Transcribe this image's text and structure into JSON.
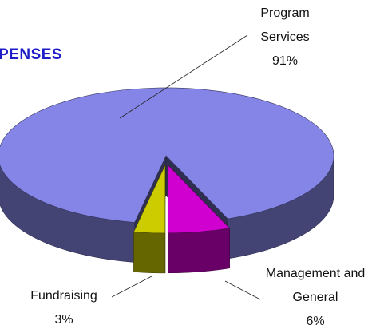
{
  "chart_data": {
    "type": "pie",
    "title": "PENSES",
    "categories": [
      "Program Services",
      "Management and General",
      "Fundraising"
    ],
    "values": [
      91,
      6,
      3
    ],
    "value_labels": [
      "91%",
      "6%",
      "3%"
    ],
    "colors": [
      "#8585e8",
      "#d000d0",
      "#cccc00"
    ]
  }
}
